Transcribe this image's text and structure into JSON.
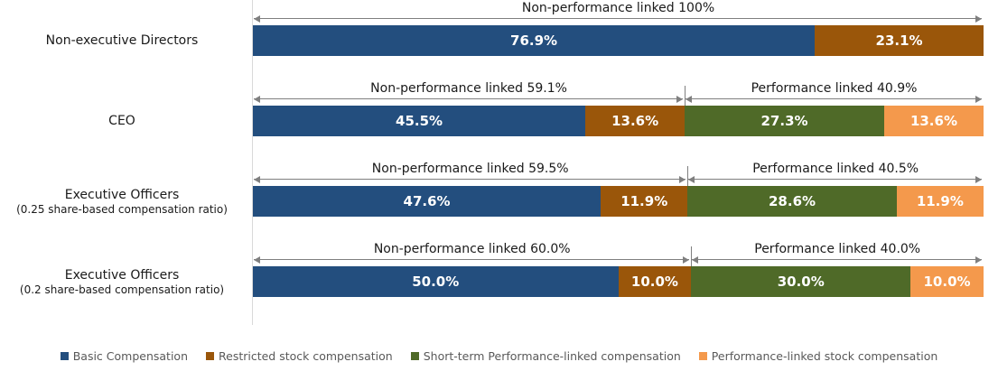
{
  "chart_data": {
    "type": "bar",
    "orientation": "horizontal",
    "stacked": true,
    "value_unit": "%",
    "xlim": [
      0,
      100
    ],
    "grid": false,
    "legend_position": "bottom",
    "series": [
      {
        "name": "Basic Compensation",
        "color": "#234E7E"
      },
      {
        "name": "Restricted stock compensation",
        "color": "#9A560A"
      },
      {
        "name": "Short-term Performance-linked compensation",
        "color": "#4F6A28"
      },
      {
        "name": "Performance-linked stock compensation",
        "color": "#F4994C"
      }
    ],
    "rows": [
      {
        "category": "Non-executive Directors",
        "category_note": "",
        "segments": [
          {
            "series": "Basic Compensation",
            "series_index": 0,
            "value": 76.9,
            "label": "76.9%"
          },
          {
            "series": "Restricted stock compensation",
            "series_index": 1,
            "value": 23.1,
            "label": "23.1%"
          }
        ],
        "annotations": [
          {
            "label": "Non-performance linked 100%",
            "span": 100
          }
        ]
      },
      {
        "category": "CEO",
        "category_note": "",
        "segments": [
          {
            "series": "Basic Compensation",
            "series_index": 0,
            "value": 45.5,
            "label": "45.5%"
          },
          {
            "series": "Restricted stock compensation",
            "series_index": 1,
            "value": 13.6,
            "label": "13.6%"
          },
          {
            "series": "Short-term Performance-linked compensation",
            "series_index": 2,
            "value": 27.3,
            "label": "27.3%"
          },
          {
            "series": "Performance-linked stock compensation",
            "series_index": 3,
            "value": 13.6,
            "label": "13.6%"
          }
        ],
        "annotations": [
          {
            "label": "Non-performance linked 59.1%",
            "span": 59.1
          },
          {
            "label": "Performance linked 40.9%",
            "span": 40.9
          }
        ]
      },
      {
        "category": "Executive Officers",
        "category_note": "(0.25 share-based compensation ratio)",
        "segments": [
          {
            "series": "Basic Compensation",
            "series_index": 0,
            "value": 47.6,
            "label": "47.6%"
          },
          {
            "series": "Restricted stock compensation",
            "series_index": 1,
            "value": 11.9,
            "label": "11.9%"
          },
          {
            "series": "Short-term Performance-linked compensation",
            "series_index": 2,
            "value": 28.6,
            "label": "28.6%"
          },
          {
            "series": "Performance-linked stock compensation",
            "series_index": 3,
            "value": 11.9,
            "label": "11.9%"
          }
        ],
        "annotations": [
          {
            "label": "Non-performance linked 59.5%",
            "span": 59.5
          },
          {
            "label": "Performance linked 40.5%",
            "span": 40.5
          }
        ]
      },
      {
        "category": "Executive Officers",
        "category_note": "(0.2 share-based compensation ratio)",
        "segments": [
          {
            "series": "Basic Compensation",
            "series_index": 0,
            "value": 50.0,
            "label": "50.0%"
          },
          {
            "series": "Restricted stock compensation",
            "series_index": 1,
            "value": 10.0,
            "label": "10.0%"
          },
          {
            "series": "Short-term Performance-linked compensation",
            "series_index": 2,
            "value": 30.0,
            "label": "30.0%"
          },
          {
            "series": "Performance-linked stock compensation",
            "series_index": 3,
            "value": 10.0,
            "label": "10.0%"
          }
        ],
        "annotations": [
          {
            "label": "Non-performance linked 60.0%",
            "span": 60.0
          },
          {
            "label": "Performance linked 40.0%",
            "span": 40.0
          }
        ]
      }
    ]
  },
  "legend": {
    "items": [
      {
        "label": "Basic Compensation",
        "color": "#234E7E"
      },
      {
        "label": "Restricted stock compensation",
        "color": "#9A560A"
      },
      {
        "label": "Short-term Performance-linked compensation",
        "color": "#4F6A28"
      },
      {
        "label": "Performance-linked stock compensation",
        "color": "#F4994C"
      }
    ]
  },
  "colors": {
    "arrow": "#7F7F7F",
    "axis_line": "#D9D9D9",
    "label_text": "#1A1A1A",
    "legend_text": "#595959",
    "bar_value_text": "#FFFFFF"
  }
}
